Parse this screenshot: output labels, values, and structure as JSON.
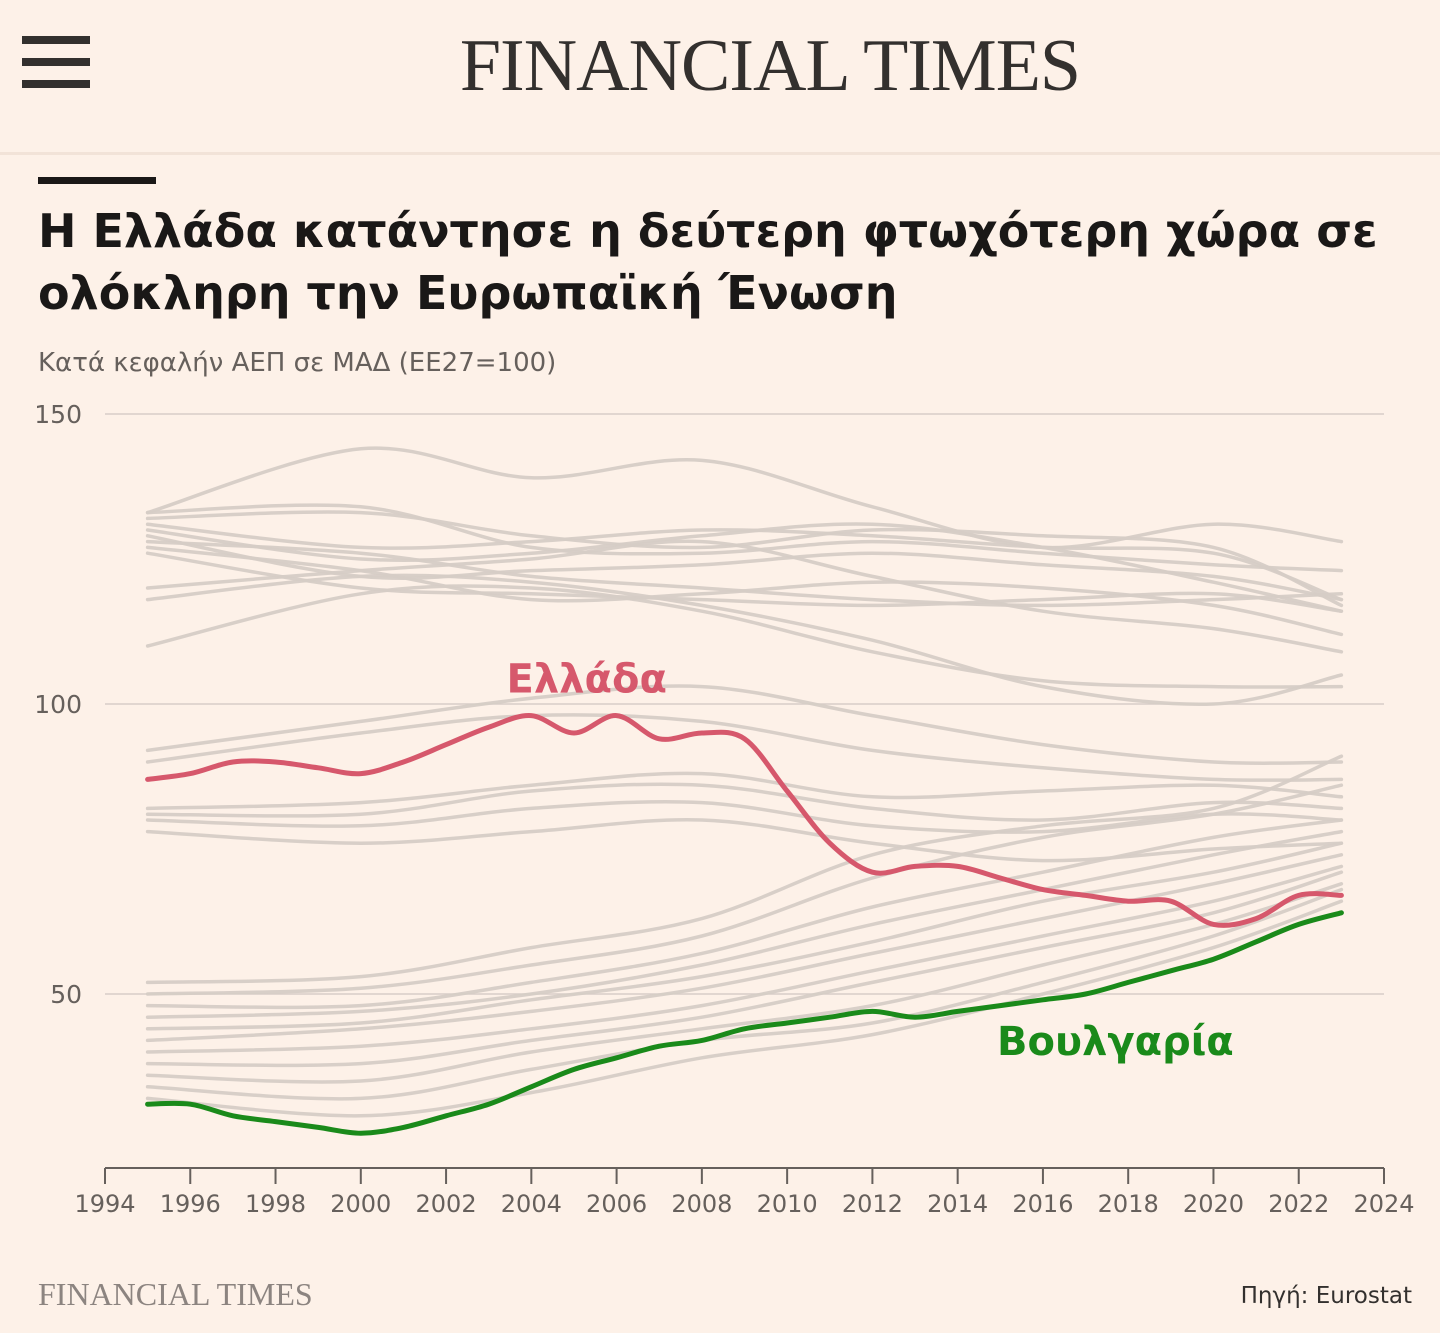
{
  "header": {
    "brand": "FINANCIAL TIMES",
    "menu_icon": "hamburger-menu-icon"
  },
  "footer": {
    "brand": "FINANCIAL TIMES",
    "source": "Πηγή: Eurostat"
  },
  "colors": {
    "background": "#fdf1e8",
    "greece": "#d6586c",
    "bulgaria": "#1a8a1a",
    "other": "#d6ccc6",
    "grid": "#d8cec8"
  },
  "chart_data": {
    "type": "line",
    "title": "Η Ελλάδα κατάντησε η δεύτερη φτωχότερη χώρα σε ολόκληρη την Ευρωπαϊκή Ένωση",
    "subtitle": "Κατά κεφαλήν ΑΕΠ σε ΜΑΔ (ΕΕ27=100)",
    "xlabel": "",
    "ylabel": "",
    "xlim": [
      1994,
      2024
    ],
    "ylim": [
      20,
      150
    ],
    "yticks": [
      150,
      100,
      50
    ],
    "xticks": [
      1994,
      1996,
      1998,
      2000,
      2002,
      2004,
      2006,
      2008,
      2010,
      2012,
      2014,
      2016,
      2018,
      2020,
      2022,
      2024
    ],
    "grid": true,
    "highlight": [
      {
        "name": "Ελλάδα",
        "color": "#d6586c",
        "x": [
          1995,
          1996,
          1997,
          1998,
          1999,
          2000,
          2001,
          2002,
          2003,
          2004,
          2005,
          2006,
          2007,
          2008,
          2009,
          2010,
          2011,
          2012,
          2013,
          2014,
          2015,
          2016,
          2017,
          2018,
          2019,
          2020,
          2021,
          2022,
          2023
        ],
        "y": [
          87,
          88,
          90,
          90,
          89,
          88,
          90,
          93,
          96,
          98,
          95,
          98,
          94,
          95,
          94,
          85,
          76,
          71,
          72,
          72,
          70,
          68,
          67,
          66,
          66,
          62,
          63,
          67,
          67
        ]
      },
      {
        "name": "Βουλγαρία",
        "color": "#1a8a1a",
        "x": [
          1995,
          1996,
          1997,
          1998,
          1999,
          2000,
          2001,
          2002,
          2003,
          2004,
          2005,
          2006,
          2007,
          2008,
          2009,
          2010,
          2011,
          2012,
          2013,
          2014,
          2015,
          2016,
          2017,
          2018,
          2019,
          2020,
          2021,
          2022,
          2023
        ],
        "y": [
          31,
          31,
          29,
          28,
          27,
          26,
          27,
          29,
          31,
          34,
          37,
          39,
          41,
          42,
          44,
          45,
          46,
          47,
          46,
          47,
          48,
          49,
          50,
          52,
          54,
          56,
          59,
          62,
          64
        ]
      }
    ],
    "background_series": {
      "x": [
        1995,
        2000,
        2004,
        2008,
        2012,
        2016,
        2020,
        2023
      ],
      "lines": [
        [
          133,
          144,
          139,
          142,
          134,
          127,
          131,
          128
        ],
        [
          133,
          134,
          127,
          126,
          128,
          126,
          124,
          123
        ],
        [
          132,
          133,
          129,
          127,
          130,
          129,
          127,
          117
        ],
        [
          131,
          127,
          128,
          130,
          129,
          127,
          126,
          118
        ],
        [
          130,
          125,
          126,
          129,
          131,
          127,
          121,
          116
        ],
        [
          129,
          122,
          123,
          124,
          126,
          124,
          122,
          118
        ],
        [
          128,
          126,
          122,
          120,
          118,
          117,
          118,
          119
        ],
        [
          127,
          123,
          118,
          119,
          121,
          120,
          117,
          112
        ],
        [
          126,
          120,
          119,
          118,
          117,
          118,
          119,
          116
        ],
        [
          120,
          123,
          125,
          128,
          122,
          116,
          113,
          109
        ],
        [
          118,
          122,
          121,
          117,
          111,
          103,
          100,
          105
        ],
        [
          110,
          119,
          120,
          116,
          109,
          104,
          103,
          103
        ],
        [
          92,
          97,
          101,
          103,
          98,
          93,
          90,
          90
        ],
        [
          90,
          95,
          98,
          97,
          92,
          89,
          87,
          87
        ],
        [
          82,
          83,
          86,
          88,
          84,
          85,
          86,
          84
        ],
        [
          81,
          81,
          85,
          86,
          82,
          80,
          83,
          82
        ],
        [
          80,
          79,
          82,
          83,
          79,
          78,
          81,
          80
        ],
        [
          78,
          76,
          78,
          80,
          76,
          73,
          75,
          76
        ],
        [
          52,
          53,
          58,
          63,
          74,
          79,
          82,
          91
        ],
        [
          50,
          51,
          55,
          60,
          70,
          77,
          81,
          86
        ],
        [
          48,
          48,
          52,
          57,
          65,
          71,
          77,
          80
        ],
        [
          46,
          47,
          50,
          55,
          62,
          68,
          74,
          78
        ],
        [
          44,
          45,
          49,
          53,
          59,
          66,
          71,
          76
        ],
        [
          42,
          44,
          47,
          51,
          57,
          63,
          69,
          74
        ],
        [
          40,
          41,
          44,
          48,
          54,
          60,
          66,
          72
        ],
        [
          38,
          38,
          42,
          46,
          52,
          58,
          64,
          71
        ],
        [
          36,
          35,
          40,
          44,
          48,
          55,
          62,
          69
        ],
        [
          34,
          32,
          37,
          42,
          45,
          52,
          60,
          68
        ],
        [
          32,
          29,
          33,
          39,
          43,
          50,
          58,
          66
        ]
      ]
    },
    "label_positions": {
      "Ελλάδα": {
        "x": 2005.3,
        "y": 102
      },
      "Βουλγαρία": {
        "x": 2017.7,
        "y": 39.5
      }
    }
  }
}
